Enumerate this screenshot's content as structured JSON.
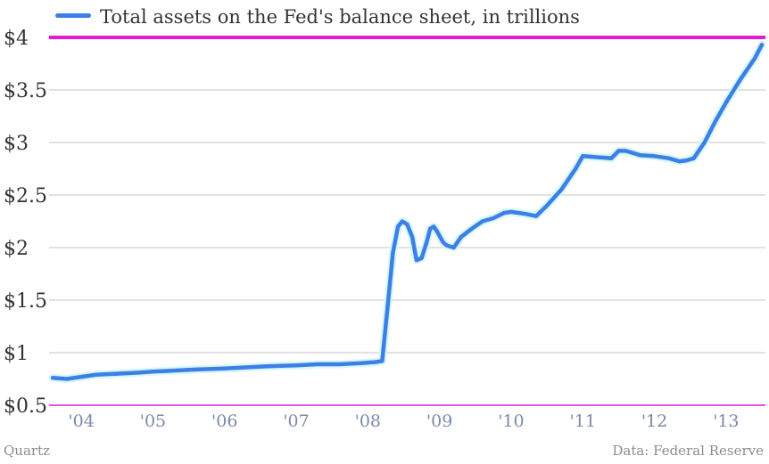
{
  "chart_data": {
    "type": "line",
    "title": "",
    "xlabel": "",
    "ylabel": "",
    "legend": {
      "position": "top-left",
      "entries": [
        "Total assets on the Fed's balance sheet, in trillions"
      ]
    },
    "ylim": [
      0.5,
      4
    ],
    "xlim": [
      2003.55,
      2013.55
    ],
    "grid": true,
    "y_ticks": [
      {
        "value": 0.5,
        "label": "$0.5"
      },
      {
        "value": 1,
        "label": "$1"
      },
      {
        "value": 1.5,
        "label": "$1.5"
      },
      {
        "value": 2,
        "label": "$2"
      },
      {
        "value": 2.5,
        "label": "$2.5"
      },
      {
        "value": 3,
        "label": "$3"
      },
      {
        "value": 3.5,
        "label": "$3.5"
      },
      {
        "value": 4,
        "label": "$4"
      }
    ],
    "x_ticks": [
      {
        "value": 2004,
        "label": "'04"
      },
      {
        "value": 2005,
        "label": "'05"
      },
      {
        "value": 2006,
        "label": "'06"
      },
      {
        "value": 2007,
        "label": "'07"
      },
      {
        "value": 2008,
        "label": "'08"
      },
      {
        "value": 2009,
        "label": "'09"
      },
      {
        "value": 2010,
        "label": "'10"
      },
      {
        "value": 2011,
        "label": "'11"
      },
      {
        "value": 2012,
        "label": "'12"
      },
      {
        "value": 2013,
        "label": "'13"
      }
    ],
    "reference_line": {
      "value": 4,
      "color": "#e11ad3"
    },
    "baseline_color": "#e11ad3",
    "series": [
      {
        "name": "Total assets on the Fed's balance sheet, in trillions",
        "color": "#3d7fe6",
        "x": [
          2003.6,
          2003.8,
          2004.0,
          2004.2,
          2004.5,
          2004.8,
          2005.0,
          2005.3,
          2005.6,
          2006.0,
          2006.3,
          2006.6,
          2007.0,
          2007.3,
          2007.6,
          2007.9,
          2008.1,
          2008.2,
          2008.3,
          2008.35,
          2008.42,
          2008.48,
          2008.55,
          2008.62,
          2008.68,
          2008.75,
          2008.82,
          2008.87,
          2008.92,
          2008.97,
          2009.05,
          2009.1,
          2009.2,
          2009.3,
          2009.45,
          2009.6,
          2009.75,
          2009.9,
          2010.0,
          2010.2,
          2010.35,
          2010.5,
          2010.7,
          2010.9,
          2011.0,
          2011.2,
          2011.4,
          2011.5,
          2011.6,
          2011.8,
          2012.0,
          2012.2,
          2012.35,
          2012.45,
          2012.55,
          2012.7,
          2012.85,
          2013.0,
          2013.2,
          2013.4,
          2013.5
        ],
        "values": [
          0.76,
          0.75,
          0.77,
          0.79,
          0.8,
          0.81,
          0.82,
          0.83,
          0.84,
          0.85,
          0.86,
          0.87,
          0.88,
          0.89,
          0.89,
          0.9,
          0.91,
          0.92,
          1.6,
          1.95,
          2.2,
          2.25,
          2.22,
          2.1,
          1.88,
          1.9,
          2.05,
          2.18,
          2.2,
          2.15,
          2.05,
          2.02,
          2.0,
          2.1,
          2.18,
          2.25,
          2.28,
          2.33,
          2.34,
          2.32,
          2.3,
          2.4,
          2.55,
          2.75,
          2.87,
          2.86,
          2.85,
          2.92,
          2.92,
          2.88,
          2.87,
          2.85,
          2.82,
          2.83,
          2.85,
          3.0,
          3.2,
          3.38,
          3.6,
          3.8,
          3.93
        ]
      }
    ]
  },
  "footer": {
    "source_left": "Quartz",
    "source_right": "Data: Federal Reserve"
  }
}
